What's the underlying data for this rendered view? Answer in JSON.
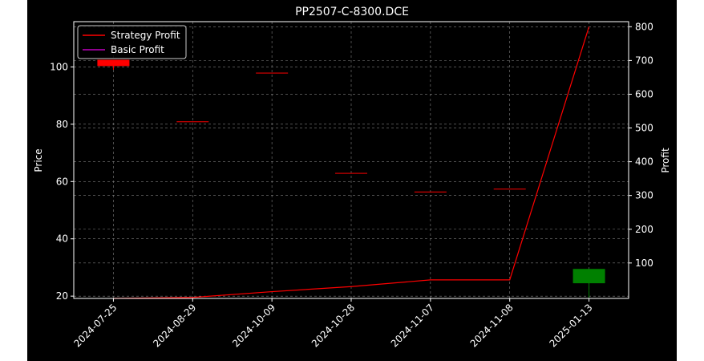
{
  "chart_data": {
    "type": "candlestick",
    "title": "PP2507-C-8300.DCE",
    "xlabel": "",
    "ylabel": "Price",
    "y2label": "Profit",
    "categories": [
      "2024-07-25",
      "2024-08-29",
      "2024-10-09",
      "2024-10-28",
      "2024-11-07",
      "2024-11-08",
      "2025-01-13"
    ],
    "ylim": [
      19.2,
      115.8
    ],
    "y2lim": [
      -5,
      815
    ],
    "yticks": [
      20,
      40,
      60,
      80,
      100
    ],
    "y2ticks": [
      100,
      200,
      300,
      400,
      500,
      600,
      700,
      800
    ],
    "grid": true,
    "legend_position": "top-left",
    "candles": [
      {
        "date": "2024-07-25",
        "open": 100.3,
        "high": 102.5,
        "low": 99.0,
        "close": 102.5
      },
      {
        "date": "2024-08-29",
        "open": 81.0,
        "high": 81.0,
        "low": 81.0,
        "close": 81.0
      },
      {
        "date": "2024-10-09",
        "open": 98.0,
        "high": 98.0,
        "low": 98.0,
        "close": 98.0
      },
      {
        "date": "2024-10-28",
        "open": 63.0,
        "high": 63.0,
        "low": 63.0,
        "close": 63.0
      },
      {
        "date": "2024-11-07",
        "open": 56.5,
        "high": 56.5,
        "low": 56.5,
        "close": 56.5
      },
      {
        "date": "2024-11-08",
        "open": 57.5,
        "high": 57.5,
        "low": 57.5,
        "close": 57.5
      },
      {
        "date": "2025-01-13",
        "open": 29.5,
        "high": 29.5,
        "low": 19.5,
        "close": 24.5
      }
    ],
    "series": [
      {
        "name": "Strategy Profit",
        "axis": "right",
        "color": "#ff0000",
        "values": [
          -5,
          -2,
          15,
          30,
          50,
          50,
          800
        ]
      },
      {
        "name": "Basic Profit",
        "axis": "right",
        "color": "#bf00bf",
        "values": [
          null,
          null,
          null,
          null,
          null,
          null,
          null
        ]
      }
    ],
    "colors": {
      "up": "#ff0000",
      "down": "#008000",
      "background": "#000000",
      "text": "#ffffff",
      "grid": "#808080"
    }
  }
}
